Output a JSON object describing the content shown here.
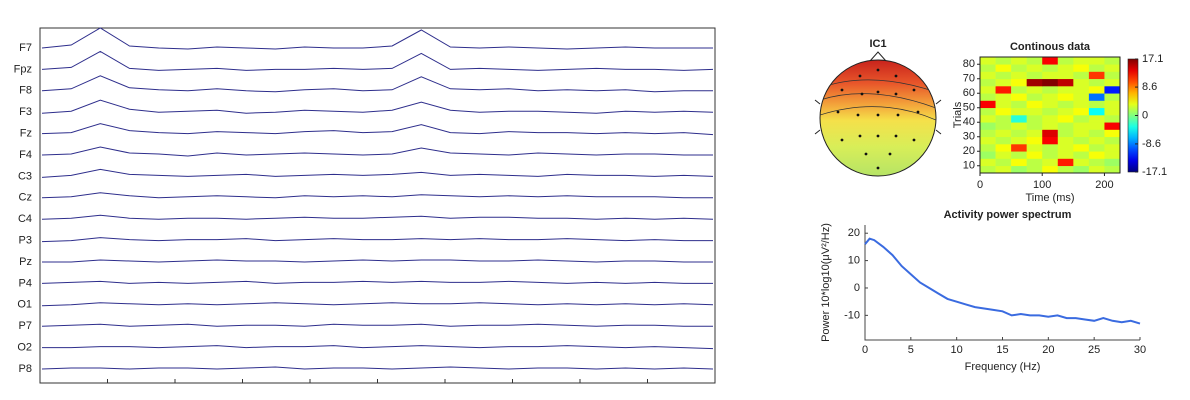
{
  "chart_data": [
    {
      "type": "eeg",
      "color": "#2e2e8c",
      "series": [
        {
          "name": "F7",
          "values": [
            0,
            3,
            20,
            2,
            0,
            -1,
            1,
            0,
            -1,
            1,
            0,
            0,
            2,
            18,
            1,
            0,
            1,
            0,
            -1,
            0,
            1,
            0,
            0,
            0
          ]
        },
        {
          "name": "Fpz",
          "values": [
            0,
            2,
            18,
            1,
            -1,
            0,
            1,
            -1,
            0,
            0,
            1,
            0,
            1,
            16,
            0,
            1,
            0,
            -1,
            0,
            1,
            0,
            0,
            -1,
            0
          ]
        },
        {
          "name": "F8",
          "values": [
            0,
            2,
            15,
            3,
            1,
            0,
            2,
            0,
            -1,
            1,
            2,
            0,
            1,
            14,
            2,
            1,
            2,
            0,
            1,
            0,
            1,
            -1,
            0,
            0
          ]
        },
        {
          "name": "F3",
          "values": [
            -1,
            1,
            12,
            3,
            0,
            1,
            2,
            -1,
            0,
            2,
            1,
            0,
            2,
            10,
            2,
            0,
            1,
            1,
            0,
            -1,
            1,
            0,
            1,
            0
          ]
        },
        {
          "name": "Fz",
          "values": [
            0,
            1,
            10,
            3,
            1,
            0,
            2,
            1,
            0,
            2,
            3,
            1,
            2,
            9,
            1,
            0,
            2,
            1,
            1,
            0,
            1,
            0,
            1,
            -1
          ]
        },
        {
          "name": "F4",
          "values": [
            0,
            1,
            8,
            2,
            1,
            -1,
            2,
            0,
            1,
            2,
            1,
            0,
            1,
            7,
            2,
            1,
            0,
            2,
            1,
            0,
            1,
            1,
            0,
            0
          ]
        },
        {
          "name": "C3",
          "values": [
            -1,
            1,
            7,
            2,
            1,
            0,
            1,
            2,
            0,
            1,
            2,
            1,
            2,
            4,
            1,
            2,
            1,
            0,
            2,
            1,
            1,
            0,
            1,
            0
          ]
        },
        {
          "name": "Cz",
          "values": [
            0,
            1,
            5,
            2,
            0,
            1,
            2,
            1,
            0,
            2,
            1,
            2,
            1,
            3,
            2,
            1,
            2,
            1,
            2,
            1,
            1,
            1,
            0,
            0
          ]
        },
        {
          "name": "C4",
          "values": [
            0,
            1,
            4,
            1,
            0,
            1,
            1,
            0,
            1,
            2,
            1,
            1,
            2,
            3,
            1,
            2,
            2,
            1,
            1,
            0,
            1,
            0,
            1,
            0
          ]
        },
        {
          "name": "P3",
          "values": [
            -1,
            0,
            3,
            1,
            0,
            1,
            1,
            2,
            0,
            1,
            2,
            1,
            1,
            2,
            1,
            2,
            1,
            1,
            2,
            1,
            0,
            1,
            0,
            0
          ]
        },
        {
          "name": "Pz",
          "values": [
            0,
            0,
            2,
            1,
            0,
            1,
            2,
            1,
            1,
            0,
            1,
            2,
            1,
            2,
            2,
            1,
            1,
            2,
            1,
            0,
            1,
            1,
            0,
            0
          ]
        },
        {
          "name": "P4",
          "values": [
            0,
            1,
            2,
            0,
            1,
            0,
            1,
            2,
            0,
            1,
            1,
            2,
            1,
            2,
            1,
            1,
            2,
            1,
            0,
            1,
            0,
            1,
            0,
            0
          ]
        },
        {
          "name": "O1",
          "values": [
            -1,
            0,
            2,
            1,
            0,
            1,
            0,
            1,
            2,
            1,
            0,
            1,
            2,
            1,
            1,
            2,
            1,
            0,
            1,
            0,
            1,
            0,
            1,
            0
          ]
        },
        {
          "name": "P7",
          "values": [
            0,
            1,
            2,
            0,
            1,
            2,
            0,
            1,
            1,
            0,
            2,
            1,
            1,
            2,
            0,
            1,
            1,
            2,
            1,
            0,
            1,
            1,
            0,
            0
          ]
        },
        {
          "name": "O2",
          "values": [
            0,
            0,
            1,
            1,
            0,
            1,
            2,
            0,
            1,
            1,
            2,
            0,
            1,
            2,
            1,
            0,
            1,
            1,
            2,
            1,
            0,
            1,
            0,
            -1
          ]
        },
        {
          "name": "P8",
          "values": [
            0,
            1,
            1,
            0,
            1,
            1,
            0,
            1,
            2,
            0,
            1,
            1,
            0,
            1,
            2,
            1,
            0,
            1,
            1,
            0,
            1,
            0,
            1,
            0
          ]
        }
      ]
    },
    {
      "type": "topomap",
      "title": "IC1"
    },
    {
      "type": "heatmap",
      "title": "Continous data",
      "xlabel": "Time (ms)",
      "ylabel": "Trials",
      "x": [
        12.5,
        37.5,
        62.5,
        87.5,
        112.5,
        137.5,
        162.5,
        187.5,
        212.5
      ],
      "y": [
        7.5,
        12.5,
        17.5,
        22.5,
        27.5,
        32.5,
        37.5,
        42.5,
        47.5,
        52.5,
        57.5,
        62.5,
        67.5,
        72.5,
        77.5,
        82.5
      ],
      "z": [
        [
          2,
          3,
          1,
          2,
          4,
          2,
          1,
          3,
          2
        ],
        [
          3,
          2,
          4,
          2,
          3,
          12,
          3,
          2,
          1
        ],
        [
          1,
          3,
          2,
          4,
          2,
          3,
          2,
          4,
          3
        ],
        [
          2,
          4,
          11,
          3,
          2,
          3,
          4,
          2,
          3
        ],
        [
          3,
          2,
          3,
          4,
          13,
          3,
          2,
          3,
          2
        ],
        [
          2,
          3,
          2,
          3,
          14,
          2,
          3,
          2,
          4
        ],
        [
          1,
          2,
          3,
          2,
          3,
          2,
          3,
          3,
          13
        ],
        [
          3,
          2,
          -3,
          2,
          3,
          4,
          2,
          3,
          2
        ],
        [
          2,
          4,
          3,
          3,
          2,
          3,
          4,
          -4,
          3
        ],
        [
          13,
          3,
          2,
          4,
          3,
          2,
          3,
          2,
          3
        ],
        [
          2,
          3,
          4,
          2,
          3,
          4,
          3,
          -9,
          2
        ],
        [
          3,
          12,
          2,
          3,
          2,
          3,
          3,
          4,
          -12
        ],
        [
          2,
          3,
          4,
          16,
          17,
          15,
          3,
          2,
          3
        ],
        [
          3,
          2,
          3,
          2,
          3,
          3,
          2,
          11,
          2
        ],
        [
          2,
          4,
          2,
          3,
          2,
          3,
          4,
          2,
          3
        ],
        [
          3,
          2,
          3,
          2,
          13,
          2,
          3,
          3,
          2
        ]
      ],
      "xlim": [
        0,
        225
      ],
      "ylim": [
        5,
        85
      ],
      "xticks": [
        0,
        100,
        200
      ],
      "yticks": [
        10,
        20,
        30,
        40,
        50,
        60,
        70,
        80
      ],
      "clim": [
        -17.1,
        17.1
      ],
      "cticks": [
        17.1,
        8.6,
        0,
        -8.6,
        -17.1
      ]
    },
    {
      "type": "line",
      "title": "Activity power spectrum",
      "xlabel": "Frequency (Hz)",
      "ylabel": "Power 10*log10(μV²/Hz)",
      "color": "#3a6be0",
      "x": [
        0,
        0.5,
        1,
        2,
        3,
        4,
        5,
        6,
        7,
        8,
        9,
        10,
        11,
        12,
        13,
        14,
        15,
        16,
        17,
        18,
        19,
        20,
        21,
        22,
        23,
        24,
        25,
        26,
        27,
        28,
        29,
        30
      ],
      "values": [
        16,
        18,
        17.5,
        15,
        12,
        8,
        5,
        2,
        0,
        -2,
        -4,
        -5,
        -6,
        -7,
        -7.5,
        -8,
        -8.5,
        -10,
        -9.5,
        -10,
        -10,
        -10.5,
        -10,
        -11,
        -11,
        -11.5,
        -12,
        -11,
        -12,
        -12.5,
        -12,
        -13
      ],
      "xlim": [
        0,
        30
      ],
      "ylim": [
        -19,
        23
      ],
      "xticks": [
        0,
        5,
        10,
        15,
        20,
        25,
        30
      ],
      "yticks": [
        -10,
        0,
        10,
        20
      ]
    }
  ]
}
